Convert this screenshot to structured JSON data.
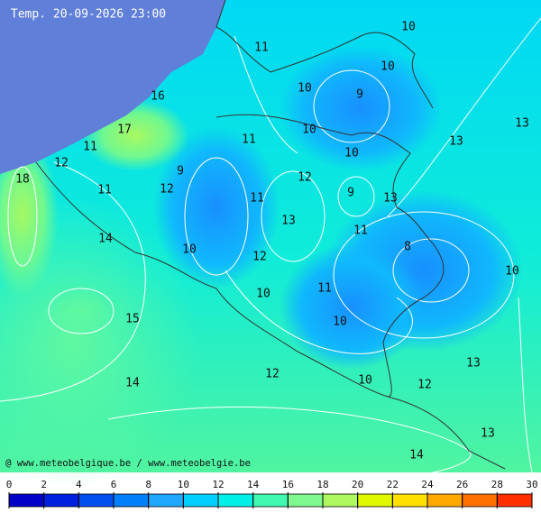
{
  "header": {
    "title": "Temp. 20-09-2026 23:00"
  },
  "map": {
    "labels": [
      10,
      11,
      10,
      16,
      10,
      9,
      13,
      17,
      10,
      11,
      13,
      11,
      10,
      12,
      9,
      18,
      12,
      11,
      12,
      9,
      11,
      13,
      13,
      11,
      14,
      8,
      10,
      12,
      10,
      10,
      11,
      15,
      10,
      13,
      12,
      10,
      12,
      14,
      13,
      14
    ],
    "credit": "@ www.meteobelgique.be / www.meteobelgie.be"
  },
  "colorbar": {
    "ticks": [
      0,
      2,
      4,
      6,
      8,
      10,
      12,
      14,
      16,
      18,
      20,
      22,
      24,
      26,
      28,
      30
    ]
  }
}
